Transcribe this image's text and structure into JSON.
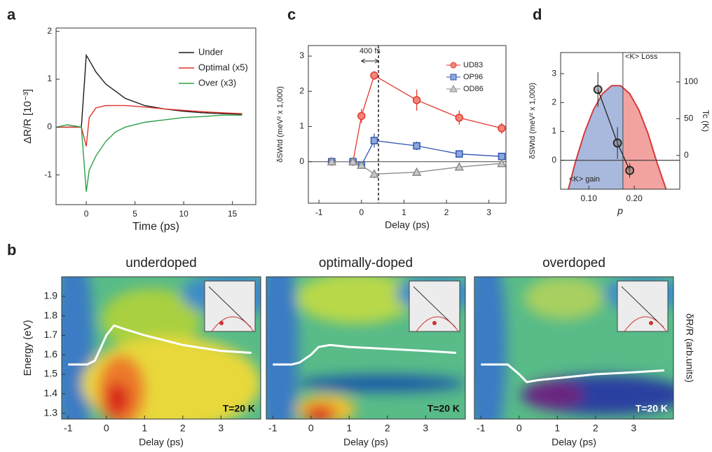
{
  "chart_data": [
    {
      "panel": "a",
      "type": "line",
      "xlabel": "Time (ps)",
      "ylabel": "ΔR/R [10⁻³]",
      "x": [
        -3,
        -2,
        -0.5,
        0,
        0.3,
        1,
        2,
        3,
        4,
        6,
        8,
        10,
        12,
        14,
        16
      ],
      "series": [
        {
          "name": "Under",
          "color": "#1a1a1a",
          "values": [
            0,
            0,
            0,
            1.5,
            1.4,
            1.15,
            0.9,
            0.75,
            0.6,
            0.45,
            0.38,
            0.33,
            0.3,
            0.28,
            0.27
          ]
        },
        {
          "name": "Optimal (x5)",
          "color": "#e0322a",
          "values": [
            0,
            0,
            0,
            -0.4,
            0.2,
            0.4,
            0.45,
            0.45,
            0.45,
            0.42,
            0.38,
            0.35,
            0.32,
            0.3,
            0.28
          ]
        },
        {
          "name": "Over (x3)",
          "color": "#2ca048",
          "values": [
            0,
            0.05,
            0,
            -1.35,
            -0.9,
            -0.6,
            -0.3,
            -0.1,
            0,
            0.1,
            0.15,
            0.2,
            0.22,
            0.25,
            0.25
          ]
        }
      ],
      "xlim": [
        -3.1,
        17.4
      ],
      "xticks": [
        0,
        5,
        10,
        15
      ],
      "ylim": [
        -1.62,
        2.07
      ],
      "yticks": [
        -1,
        0,
        1,
        2
      ],
      "legend": "upper right"
    },
    {
      "panel": "c",
      "type": "errorline",
      "xlabel": "Delay (ps)",
      "ylabel": "δSWtd (meV² x 1,000)",
      "annotation": "400 fs",
      "vline": 0.4,
      "hline": 0,
      "x": [
        -0.7,
        -0.2,
        0,
        0.3,
        1.3,
        2.3,
        3.3
      ],
      "series": [
        {
          "name": "UD83",
          "color": "#e2392f",
          "fill": "#f3867a",
          "marker": "circle",
          "values": [
            0,
            0,
            1.3,
            2.45,
            1.75,
            1.25,
            0.95
          ],
          "errors": [
            0,
            0,
            0.2,
            0.12,
            0.3,
            0.2,
            0.15
          ]
        },
        {
          "name": "OP96",
          "color": "#2f56b0",
          "fill": "#8fa8dc",
          "marker": "square",
          "values": [
            0,
            0,
            -0.1,
            0.6,
            0.45,
            0.22,
            0.15
          ],
          "errors": [
            0,
            0,
            0.1,
            0.2,
            0.12,
            0.08,
            0.08
          ]
        },
        {
          "name": "OD86",
          "color": "#8c8c8c",
          "fill": "#c8c8c8",
          "marker": "triangle",
          "values": [
            0,
            0,
            -0.1,
            -0.35,
            -0.3,
            -0.15,
            -0.05
          ],
          "errors": [
            0,
            0,
            0.05,
            0.12,
            0.08,
            0.05,
            0.05
          ]
        }
      ],
      "xlim": [
        -1.25,
        3.4
      ],
      "xticks": [
        -1,
        0,
        1,
        2,
        3
      ],
      "ylim": [
        -1.18,
        3.3
      ],
      "yticks": [
        0,
        1,
        2,
        3
      ],
      "legend": "upper right"
    },
    {
      "panel": "d",
      "type": "phase",
      "xlabel": "p",
      "ylabel": "δSWtd (meV² x 1,000)",
      "y2label": "Tc (K)",
      "annotations": [
        "<K> Loss",
        "<K> gain"
      ],
      "vline": 0.175,
      "hline": 0,
      "series": [
        {
          "style": "area",
          "axis": "y2",
          "color": "#d63a3a",
          "fills": [
            "#a9b9dd",
            "#f2a3a0"
          ],
          "x": [
            0.055,
            0.07,
            0.09,
            0.11,
            0.13,
            0.15,
            0.17,
            0.19,
            0.21,
            0.23,
            0.25,
            0.27
          ],
          "values": [
            -46,
            -10,
            30,
            62,
            84,
            95,
            95,
            84,
            62,
            30,
            -10,
            -46
          ]
        },
        {
          "style": "points",
          "color": "#222222",
          "x": [
            0.12,
            0.163,
            0.19
          ],
          "values": [
            2.45,
            0.6,
            -0.35
          ],
          "errors": [
            0.6,
            0.55,
            0.25
          ]
        }
      ],
      "xlim": [
        0.038,
        0.3
      ],
      "xticks": [
        {
          "value": 0.1,
          "label": "0.10"
        },
        {
          "value": 0.2,
          "label": "0.20"
        }
      ],
      "ylim": [
        -1,
        3.73
      ],
      "yticks": [
        0,
        1,
        2,
        3
      ],
      "y2lim": [
        -46,
        140
      ],
      "y2ticks": [
        0,
        50,
        100
      ]
    },
    {
      "panel": "b",
      "type": "heatmap",
      "title": "underdoped",
      "xlabel": "Delay (ps)",
      "ylabel": "Energy (eV)",
      "annotation": "T=20 K",
      "x": [
        -1,
        -0.5,
        -0.3,
        0,
        0.2,
        0.5,
        1,
        2,
        3,
        3.8
      ],
      "values": [
        1.55,
        1.55,
        1.57,
        1.7,
        1.75,
        1.73,
        1.7,
        1.65,
        1.62,
        1.61
      ],
      "xlim": [
        -1.17,
        4.04
      ],
      "xticks": [
        -1,
        0,
        1,
        2,
        3
      ],
      "ylim": [
        1.27,
        2.0
      ],
      "yticks": [
        1.3,
        1.4,
        1.5,
        1.6,
        1.7,
        1.8,
        1.9
      ]
    },
    {
      "type": "heatmap",
      "title": "optimally-doped",
      "xlabel": "Delay (ps)",
      "annotation": "T=20 K",
      "x": [
        -1,
        -0.5,
        -0.3,
        0,
        0.2,
        0.5,
        1,
        2,
        3,
        3.8
      ],
      "values": [
        1.55,
        1.55,
        1.56,
        1.6,
        1.64,
        1.65,
        1.64,
        1.63,
        1.62,
        1.61
      ],
      "xlim": [
        -1.17,
        4.04
      ],
      "xticks": [
        -1,
        0,
        1,
        2,
        3
      ],
      "ylim": [
        1.27,
        2.0
      ]
    },
    {
      "type": "heatmap",
      "title": "overdoped",
      "xlabel": "Delay (ps)",
      "y2label": "δR/R (arb.units)",
      "annotation": "T=20 K",
      "x": [
        -1,
        -0.5,
        -0.3,
        0,
        0.2,
        0.5,
        1,
        2,
        3,
        3.8
      ],
      "values": [
        1.55,
        1.55,
        1.55,
        1.5,
        1.46,
        1.47,
        1.48,
        1.5,
        1.51,
        1.52
      ],
      "xlim": [
        -1.17,
        4.04
      ],
      "xticks": [
        -1,
        0,
        1,
        2,
        3
      ],
      "ylim": [
        1.27,
        2.0
      ]
    }
  ]
}
